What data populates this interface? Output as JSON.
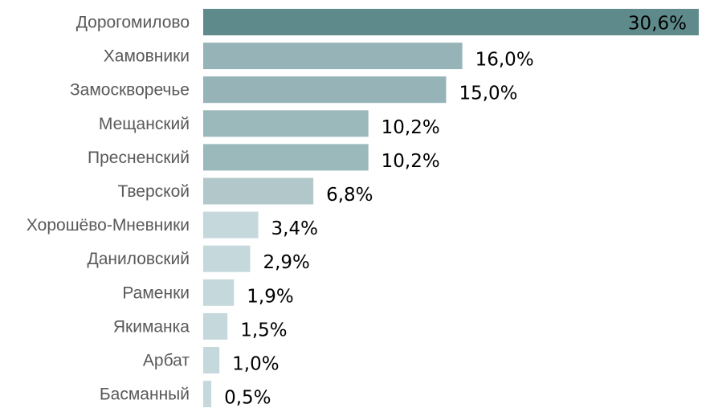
{
  "chart_data": {
    "type": "bar",
    "orientation": "horizontal",
    "categories": [
      "Дорогомилово",
      "Хамовники",
      "Замоскворечье",
      "Мещанский",
      "Пресненский",
      "Тверской",
      "Хорошёво-Мневники",
      "Даниловский",
      "Раменки",
      "Якиманка",
      "Арбат",
      "Басманный"
    ],
    "values": [
      30.6,
      16.0,
      15.0,
      10.2,
      10.2,
      6.8,
      3.4,
      2.9,
      1.9,
      1.5,
      1.0,
      0.5
    ],
    "value_labels": [
      "30,6%",
      "16,0%",
      "15,0%",
      "10,2%",
      "10,2%",
      "6,8%",
      "3,4%",
      "2,9%",
      "1,9%",
      "1,5%",
      "1,0%",
      "0,5%"
    ],
    "colors": [
      "#5f8a8b",
      "#96b4b7",
      "#96b4b7",
      "#9bb8ba",
      "#9bb8ba",
      "#b2c7ca",
      "#c5d8db",
      "#c5d8db",
      "#c5d8db",
      "#c5d8db",
      "#c5d8db",
      "#c5d8db"
    ],
    "xlim": [
      0,
      30.6
    ],
    "title": "",
    "xlabel": "",
    "ylabel": "",
    "grid": false,
    "legend": "none"
  }
}
